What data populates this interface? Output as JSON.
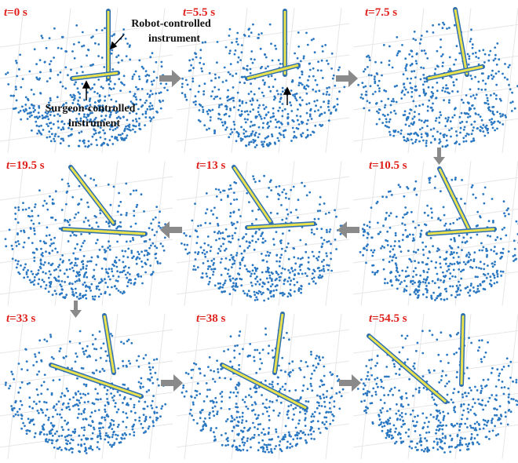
{
  "panels": [
    {
      "time_var": "t",
      "time_value": "=0 s"
    },
    {
      "time_var": "t",
      "time_value": "=5.5 s"
    },
    {
      "time_var": "t",
      "time_value": "=7.5 s"
    },
    {
      "time_var": "t",
      "time_value": "=19.5 s"
    },
    {
      "time_var": "t",
      "time_value": "=13 s"
    },
    {
      "time_var": "t",
      "time_value": "=10.5 s"
    },
    {
      "time_var": "t",
      "time_value": "=33 s"
    },
    {
      "time_var": "t",
      "time_value": "=38 s"
    },
    {
      "time_var": "t",
      "time_value": "=54.5 s"
    }
  ],
  "annotations": {
    "robot": [
      "Robot-controlled",
      "instrument"
    ],
    "surgeon": [
      "Surgeon-controlled",
      "instrument"
    ]
  }
}
